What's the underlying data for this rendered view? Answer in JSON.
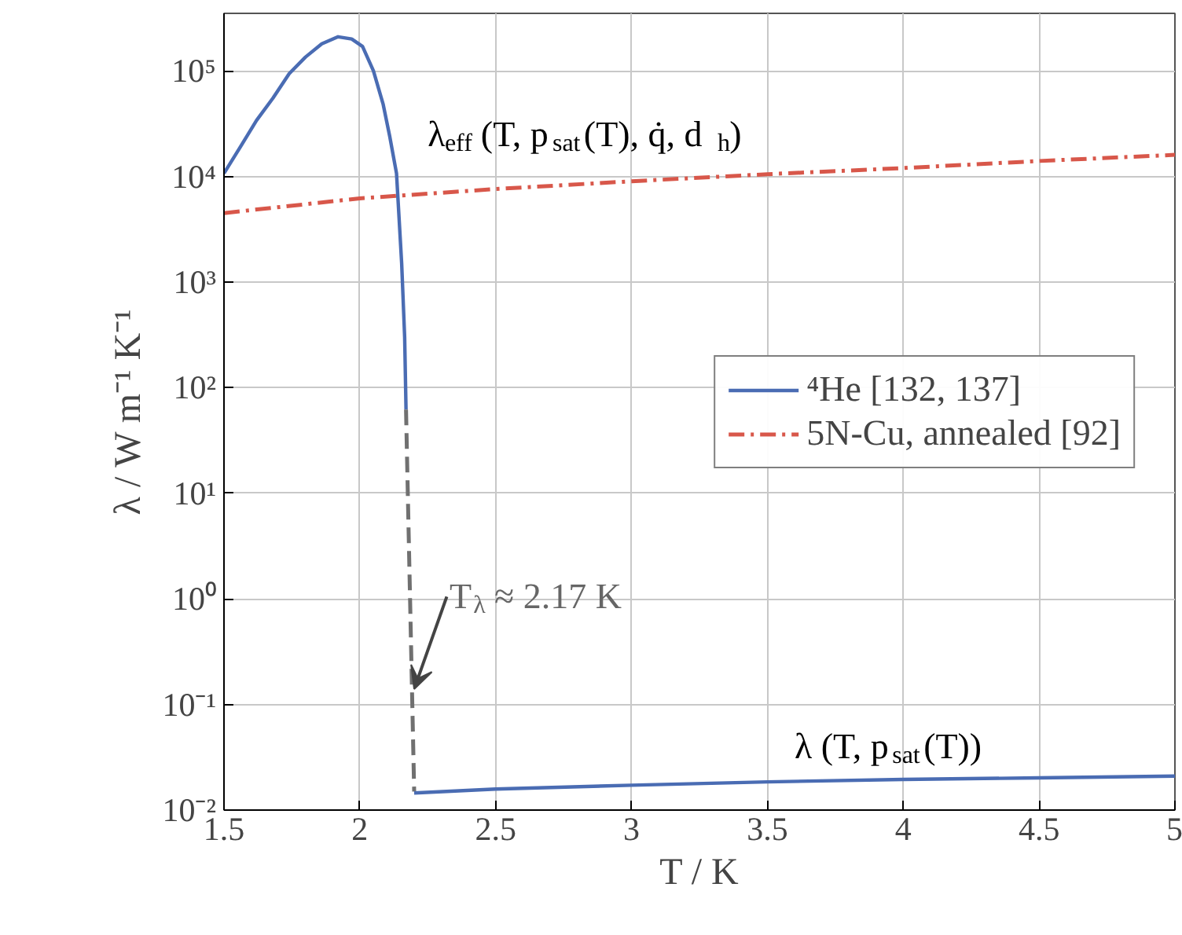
{
  "chart_data": {
    "type": "line",
    "xlabel": "T / K",
    "ylabel": "λ / W m⁻¹ K⁻¹",
    "xlim": [
      1.5,
      5
    ],
    "xticks": [
      1.5,
      2,
      2.5,
      3,
      3.5,
      4,
      4.5,
      5
    ],
    "ylim": [
      0.01,
      350000
    ],
    "log": "y",
    "yticks": [
      {
        "value": 0.01,
        "label": "10⁻²"
      },
      {
        "value": 0.1,
        "label": "10⁻¹"
      },
      {
        "value": 1,
        "label": "10⁰"
      },
      {
        "value": 10,
        "label": "10¹"
      },
      {
        "value": 100,
        "label": "10²"
      },
      {
        "value": 1000,
        "label": "10³"
      },
      {
        "value": 10000,
        "label": "10⁴"
      },
      {
        "value": 100000,
        "label": "10⁵"
      }
    ],
    "grid": true,
    "legend": "right",
    "marker": "none",
    "series": [
      {
        "name": "⁴He [132, 137]",
        "color": "#4a6cb3",
        "line_style": "solid",
        "x": [
          1.5,
          1.56,
          1.62,
          1.68,
          1.74,
          1.8,
          1.86,
          1.92,
          1.97,
          2.01,
          2.05,
          2.086,
          2.11,
          2.135,
          2.154,
          2.165,
          2.17
        ],
        "values": [
          10700,
          19000,
          34000,
          55000,
          94000,
          135000,
          180000,
          210000,
          200000,
          170000,
          100000,
          48000,
          24000,
          10700,
          1500,
          300,
          62
        ]
      },
      {
        "color": "#707070",
        "line_style": "dashed",
        "x": [
          2.17,
          2.2
        ],
        "values": [
          62,
          0.015
        ]
      },
      {
        "color": "#4a6cb3",
        "line_style": "solid",
        "x": [
          2.2,
          2.5,
          3,
          3.5,
          4,
          4.5,
          5
        ],
        "values": [
          0.0145,
          0.0158,
          0.0172,
          0.0185,
          0.0195,
          0.0202,
          0.021
        ]
      },
      {
        "name": "5N-Cu, annealed [92]",
        "color": "#d8574a",
        "line_style": "dashdot",
        "x": [
          1.5,
          2,
          2.5,
          3,
          3.5,
          4,
          4.5,
          5
        ],
        "values": [
          4500,
          6200,
          7600,
          9000,
          10500,
          12000,
          14000,
          16000
        ]
      }
    ],
    "annotations": [
      "λ$_{eff}$ (T, p$_{sat}$(T), q̇, d$_{h}$)",
      "λ (T, p$_{sat}$(T))",
      {
        "text": "T$_{λ}$ ≈ 2.17 K",
        "x": 2.2,
        "y": 0.14
      }
    ]
  }
}
